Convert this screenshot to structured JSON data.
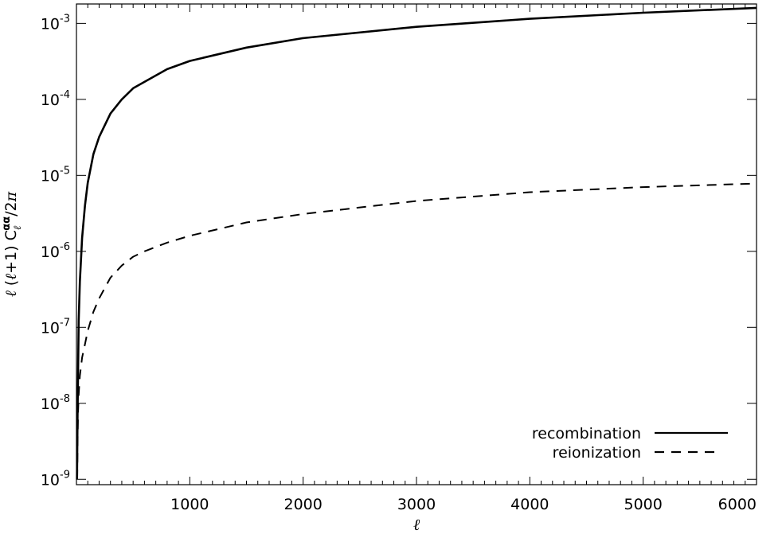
{
  "chart_data": {
    "type": "line",
    "xlabel": "ℓ",
    "ylabel": "ℓ (ℓ+1)  C_ℓ^{αα}/2π",
    "xlim": [
      0,
      6000
    ],
    "ylim": [
      8.5e-10,
      0.0018
    ],
    "yscale": "log",
    "grid": false,
    "legend_position": "bottom-right",
    "x_ticks": [
      {
        "value": 1000,
        "label": "1000"
      },
      {
        "value": 2000,
        "label": "2000"
      },
      {
        "value": 3000,
        "label": "3000"
      },
      {
        "value": 4000,
        "label": "4000"
      },
      {
        "value": 5000,
        "label": "5000"
      },
      {
        "value": 6000,
        "label": "6000"
      }
    ],
    "y_ticks": [
      {
        "value": 1e-09,
        "base": "10",
        "exp": "-9"
      },
      {
        "value": 1e-08,
        "base": "10",
        "exp": "-8"
      },
      {
        "value": 1e-07,
        "base": "10",
        "exp": "-7"
      },
      {
        "value": 1e-06,
        "base": "10",
        "exp": "-6"
      },
      {
        "value": 1e-05,
        "base": "10",
        "exp": "-5"
      },
      {
        "value": 0.0001,
        "base": "10",
        "exp": "-4"
      },
      {
        "value": 0.001,
        "base": "10",
        "exp": "-3"
      }
    ],
    "series": [
      {
        "name": "recombination",
        "style": "solid",
        "x": [
          5,
          10,
          20,
          30,
          50,
          75,
          100,
          150,
          200,
          300,
          400,
          500,
          600,
          800,
          1000,
          1500,
          2000,
          3000,
          4000,
          5000,
          6000
        ],
        "y": [
          1e-09,
          7e-09,
          1.2e-07,
          4e-07,
          1.5e-06,
          4e-06,
          8e-06,
          1.9e-05,
          3.2e-05,
          6.5e-05,
          0.0001,
          0.00014,
          0.00017,
          0.00025,
          0.00032,
          0.00048,
          0.00064,
          0.0009,
          0.00115,
          0.00138,
          0.0016
        ]
      },
      {
        "name": "reionization",
        "style": "dashed",
        "x": [
          7,
          10,
          15,
          20,
          30,
          50,
          75,
          100,
          150,
          200,
          300,
          400,
          500,
          600,
          800,
          1000,
          1500,
          2000,
          3000,
          4000,
          5000,
          6000
        ],
        "y": [
          1e-09,
          3e-09,
          8e-09,
          1.3e-08,
          2.3e-08,
          4e-08,
          6e-08,
          9e-08,
          1.6e-07,
          2.4e-07,
          4.5e-07,
          6.5e-07,
          8.5e-07,
          1e-06,
          1.3e-06,
          1.6e-06,
          2.4e-06,
          3.1e-06,
          4.6e-06,
          6e-06,
          7e-06,
          7.8e-06
        ]
      }
    ]
  }
}
